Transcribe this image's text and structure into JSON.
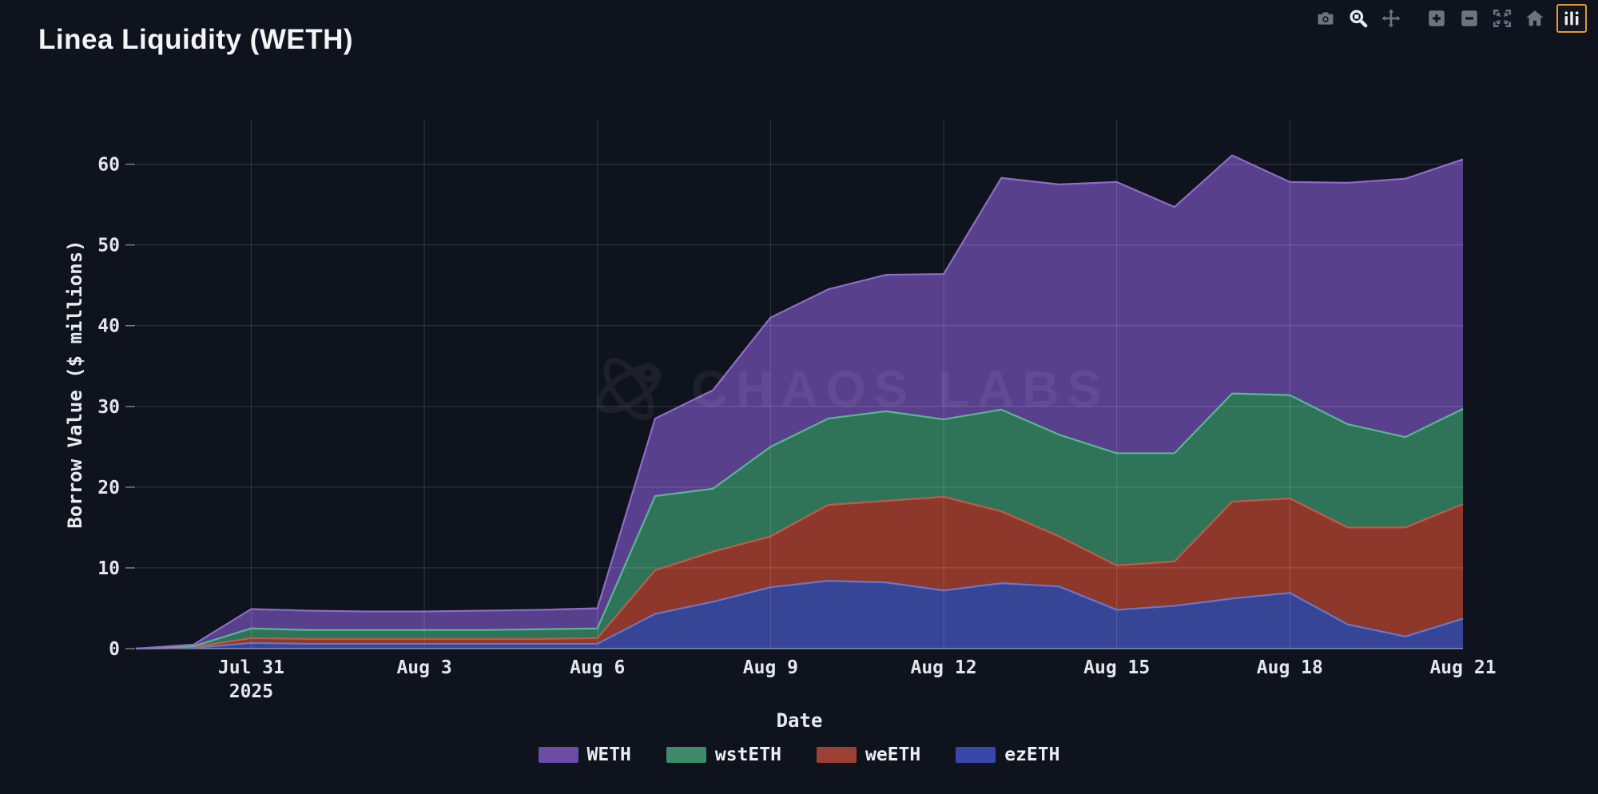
{
  "header": {
    "title": "Linea Liquidity (WETH)"
  },
  "modebar": {
    "buttons": [
      {
        "name": "download-plot-camera"
      },
      {
        "name": "zoom",
        "active": true
      },
      {
        "name": "pan"
      },
      {
        "name": "zoom-in"
      },
      {
        "name": "zoom-out"
      },
      {
        "name": "autoscale"
      },
      {
        "name": "reset-axes-home"
      },
      {
        "name": "plotly-logo",
        "highlighted": true
      }
    ],
    "icon_color": "#6b7482",
    "active_icon_color": "#e6e9ee",
    "highlight_border_color": "#e29b2e"
  },
  "chart_data": {
    "type": "area",
    "stacked": true,
    "title": "Linea Liquidity (WETH)",
    "xlabel": "Date",
    "ylabel": "Borrow Value ($ millions)",
    "watermark": "CHAOS LABS",
    "grid": true,
    "legend_position": "bottom-center",
    "x": [
      "Jul 29",
      "Jul 30",
      "Jul 31",
      "Aug 1",
      "Aug 2",
      "Aug 3",
      "Aug 4",
      "Aug 5",
      "Aug 6",
      "Aug 7",
      "Aug 8",
      "Aug 9",
      "Aug 10",
      "Aug 11",
      "Aug 12",
      "Aug 13",
      "Aug 14",
      "Aug 15",
      "Aug 16",
      "Aug 17",
      "Aug 18",
      "Aug 19",
      "Aug 20",
      "Aug 21"
    ],
    "x_ticks": [
      {
        "index": 2,
        "label": "Jul 31",
        "sublabel": "2025"
      },
      {
        "index": 5,
        "label": "Aug 3"
      },
      {
        "index": 8,
        "label": "Aug 6"
      },
      {
        "index": 11,
        "label": "Aug 9"
      },
      {
        "index": 14,
        "label": "Aug 12"
      },
      {
        "index": 17,
        "label": "Aug 15"
      },
      {
        "index": 20,
        "label": "Aug 18"
      },
      {
        "index": 23,
        "label": "Aug 21"
      }
    ],
    "yticks": [
      0,
      10,
      20,
      30,
      40,
      50,
      60
    ],
    "ylim": [
      0,
      65.5
    ],
    "series": [
      {
        "name": "ezETH",
        "fill": "#364595",
        "line": "#6577cf",
        "legend": "#3948a8",
        "values": [
          0.0,
          0.1,
          0.7,
          0.6,
          0.6,
          0.6,
          0.6,
          0.6,
          0.6,
          4.3,
          5.8,
          7.6,
          8.4,
          8.2,
          7.2,
          8.1,
          7.7,
          4.8,
          5.3,
          6.2,
          6.9,
          3.0,
          1.5,
          3.7
        ]
      },
      {
        "name": "weETH",
        "fill": "#8d382b",
        "line": "#c25a48",
        "legend": "#9c4033",
        "values": [
          0.0,
          0.1,
          0.6,
          0.6,
          0.6,
          0.6,
          0.6,
          0.6,
          0.7,
          5.4,
          6.2,
          6.3,
          9.4,
          10.1,
          11.6,
          8.9,
          6.2,
          5.5,
          5.5,
          12.0,
          11.7,
          12.0,
          13.5,
          14.2
        ]
      },
      {
        "name": "wstETH",
        "fill": "#2f7458",
        "line": "#57b88d",
        "legend": "#3e8b69",
        "values": [
          0.0,
          0.1,
          1.2,
          1.1,
          1.1,
          1.1,
          1.1,
          1.2,
          1.2,
          9.2,
          7.8,
          11.1,
          10.7,
          11.1,
          9.6,
          12.6,
          12.6,
          13.9,
          13.4,
          13.4,
          12.8,
          12.8,
          11.2,
          11.8
        ]
      },
      {
        "name": "WETH",
        "fill": "#59408d",
        "line": "#8d6cc9",
        "legend": "#6b4da6",
        "values": [
          0.0,
          0.2,
          2.4,
          2.4,
          2.3,
          2.3,
          2.4,
          2.4,
          2.5,
          9.6,
          12.2,
          16.0,
          16.0,
          16.9,
          18.0,
          28.7,
          31.0,
          33.6,
          30.5,
          29.5,
          26.4,
          29.9,
          32.0,
          30.9
        ]
      }
    ],
    "legend_order": [
      "WETH",
      "wstETH",
      "weETH",
      "ezETH"
    ],
    "colors": {
      "background": "#0f131e",
      "grid": "rgba(255,255,255,0.15)",
      "axis_line": "rgba(255,255,255,0.45)",
      "tick_text": "#e4e6ea",
      "title_text": "#f3f4f6"
    }
  }
}
